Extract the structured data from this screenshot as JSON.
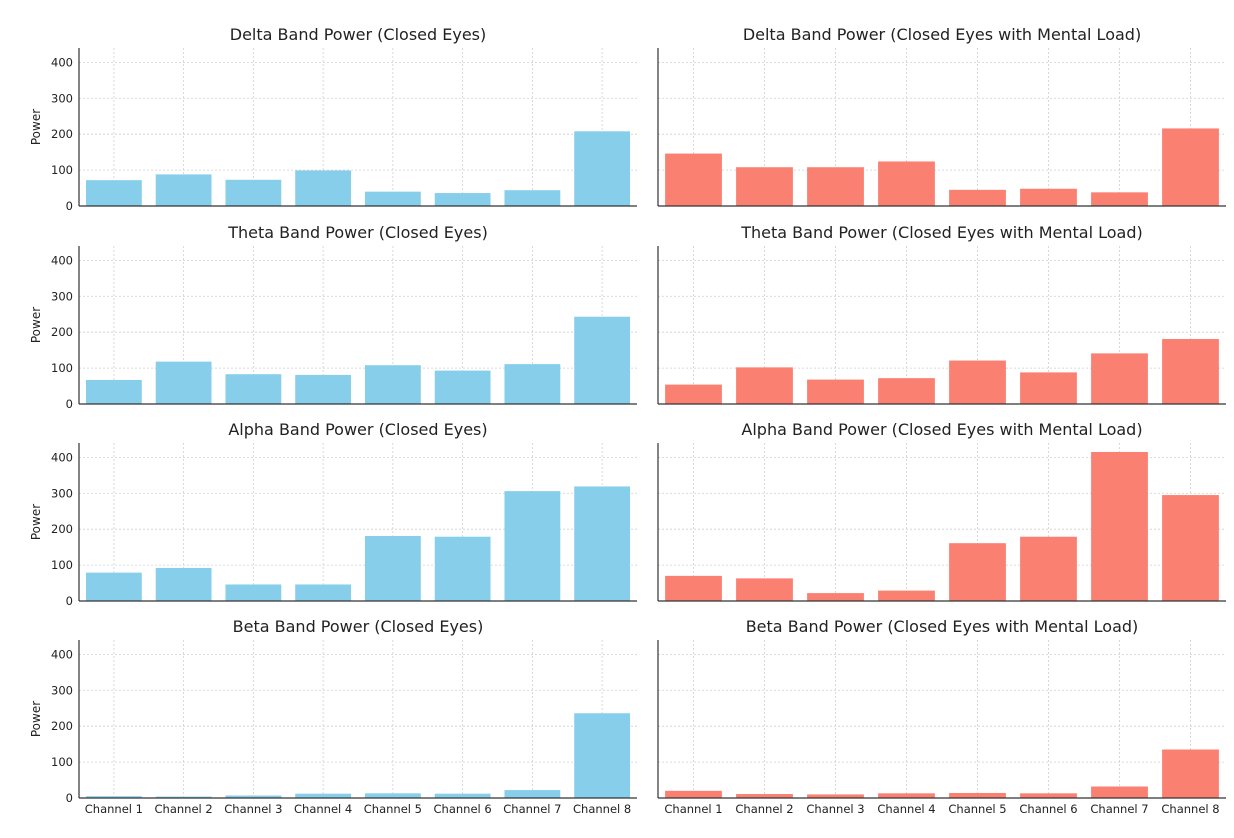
{
  "chart_data": [
    {
      "type": "bar",
      "title": "Delta Band Power (Closed Eyes)",
      "xlabel": "",
      "ylabel": "Power",
      "ylim": [
        0,
        440
      ],
      "yticks": [
        0,
        100,
        200,
        300,
        400
      ],
      "grid": true,
      "color": "#87CEEB",
      "categories": [
        "Channel 1",
        "Channel 2",
        "Channel 3",
        "Channel 4",
        "Channel 5",
        "Channel 6",
        "Channel 7",
        "Channel 8"
      ],
      "values": [
        72,
        88,
        73,
        99,
        40,
        36,
        44,
        208
      ]
    },
    {
      "type": "bar",
      "title": "Delta Band Power (Closed Eyes with Mental Load)",
      "xlabel": "",
      "ylabel": "",
      "ylim": [
        0,
        440
      ],
      "yticks": [
        0,
        100,
        200,
        300,
        400
      ],
      "grid": true,
      "color": "#FA8072",
      "categories": [
        "Channel 1",
        "Channel 2",
        "Channel 3",
        "Channel 4",
        "Channel 5",
        "Channel 6",
        "Channel 7",
        "Channel 8"
      ],
      "values": [
        146,
        108,
        108,
        124,
        45,
        48,
        38,
        216
      ]
    },
    {
      "type": "bar",
      "title": "Theta Band Power (Closed Eyes)",
      "xlabel": "",
      "ylabel": "Power",
      "ylim": [
        0,
        440
      ],
      "yticks": [
        0,
        100,
        200,
        300,
        400
      ],
      "grid": true,
      "color": "#87CEEB",
      "categories": [
        "Channel 1",
        "Channel 2",
        "Channel 3",
        "Channel 4",
        "Channel 5",
        "Channel 6",
        "Channel 7",
        "Channel 8"
      ],
      "values": [
        67,
        118,
        83,
        81,
        108,
        93,
        111,
        243
      ]
    },
    {
      "type": "bar",
      "title": "Theta Band Power (Closed Eyes with Mental Load)",
      "xlabel": "",
      "ylabel": "",
      "ylim": [
        0,
        440
      ],
      "yticks": [
        0,
        100,
        200,
        300,
        400
      ],
      "grid": true,
      "color": "#FA8072",
      "categories": [
        "Channel 1",
        "Channel 2",
        "Channel 3",
        "Channel 4",
        "Channel 5",
        "Channel 6",
        "Channel 7",
        "Channel 8"
      ],
      "values": [
        54,
        102,
        68,
        72,
        121,
        88,
        141,
        181
      ]
    },
    {
      "type": "bar",
      "title": "Alpha Band Power (Closed Eyes)",
      "xlabel": "",
      "ylabel": "Power",
      "ylim": [
        0,
        440
      ],
      "yticks": [
        0,
        100,
        200,
        300,
        400
      ],
      "grid": true,
      "color": "#87CEEB",
      "categories": [
        "Channel 1",
        "Channel 2",
        "Channel 3",
        "Channel 4",
        "Channel 5",
        "Channel 6",
        "Channel 7",
        "Channel 8"
      ],
      "values": [
        79,
        92,
        46,
        46,
        181,
        179,
        306,
        319
      ]
    },
    {
      "type": "bar",
      "title": "Alpha Band Power (Closed Eyes with Mental Load)",
      "xlabel": "",
      "ylabel": "",
      "ylim": [
        0,
        440
      ],
      "yticks": [
        0,
        100,
        200,
        300,
        400
      ],
      "grid": true,
      "color": "#FA8072",
      "categories": [
        "Channel 1",
        "Channel 2",
        "Channel 3",
        "Channel 4",
        "Channel 5",
        "Channel 6",
        "Channel 7",
        "Channel 8"
      ],
      "values": [
        70,
        63,
        22,
        29,
        161,
        179,
        415,
        295
      ]
    },
    {
      "type": "bar",
      "title": "Beta Band Power (Closed Eyes)",
      "xlabel": "",
      "ylabel": "Power",
      "ylim": [
        0,
        440
      ],
      "yticks": [
        0,
        100,
        200,
        300,
        400
      ],
      "grid": true,
      "color": "#87CEEB",
      "categories": [
        "Channel 1",
        "Channel 2",
        "Channel 3",
        "Channel 4",
        "Channel 5",
        "Channel 6",
        "Channel 7",
        "Channel 8"
      ],
      "values": [
        5,
        4,
        7,
        12,
        13,
        12,
        22,
        236
      ]
    },
    {
      "type": "bar",
      "title": "Beta Band Power (Closed Eyes with Mental Load)",
      "xlabel": "",
      "ylabel": "",
      "ylim": [
        0,
        440
      ],
      "yticks": [
        0,
        100,
        200,
        300,
        400
      ],
      "grid": true,
      "color": "#FA8072",
      "categories": [
        "Channel 1",
        "Channel 2",
        "Channel 3",
        "Channel 4",
        "Channel 5",
        "Channel 6",
        "Channel 7",
        "Channel 8"
      ],
      "values": [
        20,
        11,
        10,
        13,
        14,
        13,
        32,
        135
      ]
    }
  ]
}
